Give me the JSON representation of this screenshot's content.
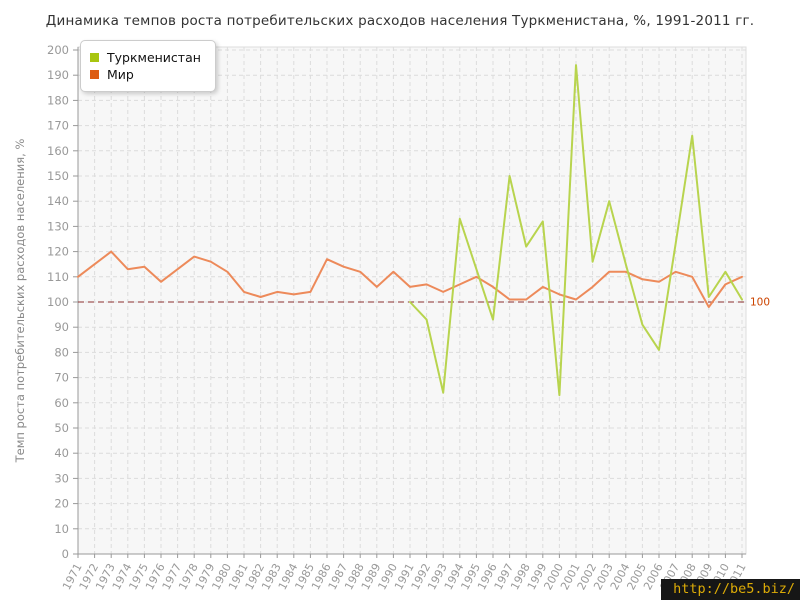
{
  "title": "Динамика темпов роста потребительских расходов населения Туркменистана, %, 1991-2011 гг.",
  "watermark": "http://be5.biz/",
  "colors": {
    "plot_background": "#f7f7f7",
    "grid": "#dcdcdc",
    "axis": "#999999",
    "tick_text": "#999999",
    "title_text": "#333333",
    "reference_line": "#8b2f2f",
    "reference_label": "#cc4400"
  },
  "legend": {
    "items": [
      {
        "label": "Туркменистан",
        "color": "#a8c510"
      },
      {
        "label": "Мир",
        "color": "#dd5c12"
      }
    ]
  },
  "chart_data": {
    "type": "line",
    "title": "Динамика темпов роста потребительских расходов населения Туркменистана, %, 1991-2011 гг.",
    "xlabel": "",
    "ylabel": "Темп роста потребительских расходов населения, %",
    "ylim": [
      0,
      200
    ],
    "ytick_step": 10,
    "grid": true,
    "legend_position": "top-left",
    "x": [
      1971,
      1972,
      1973,
      1974,
      1975,
      1976,
      1977,
      1978,
      1979,
      1980,
      1981,
      1982,
      1983,
      1984,
      1985,
      1986,
      1987,
      1988,
      1989,
      1990,
      1991,
      1992,
      1993,
      1994,
      1995,
      1996,
      1997,
      1998,
      1999,
      2000,
      2001,
      2002,
      2003,
      2004,
      2005,
      2006,
      2007,
      2008,
      2009,
      2010,
      2011
    ],
    "series": [
      {
        "name": "Туркменистан",
        "color": "#b8d44e",
        "x_start": 1991,
        "values": [
          100,
          93,
          64,
          133,
          113,
          93,
          150,
          122,
          132,
          63,
          194,
          116,
          140,
          115,
          91,
          81,
          123,
          166,
          102,
          112,
          101
        ]
      },
      {
        "name": "Мир",
        "color": "#ed8a5a",
        "x_start": 1971,
        "values": [
          110,
          115,
          120,
          113,
          114,
          108,
          113,
          118,
          116,
          112,
          104,
          102,
          104,
          103,
          104,
          117,
          114,
          112,
          106,
          112,
          106,
          107,
          104,
          107,
          110,
          106,
          101,
          101,
          106,
          103,
          101,
          106,
          112,
          112,
          109,
          108,
          112,
          110,
          98,
          107,
          110
        ]
      }
    ],
    "reference_line": {
      "value": 100,
      "label": "100"
    }
  }
}
